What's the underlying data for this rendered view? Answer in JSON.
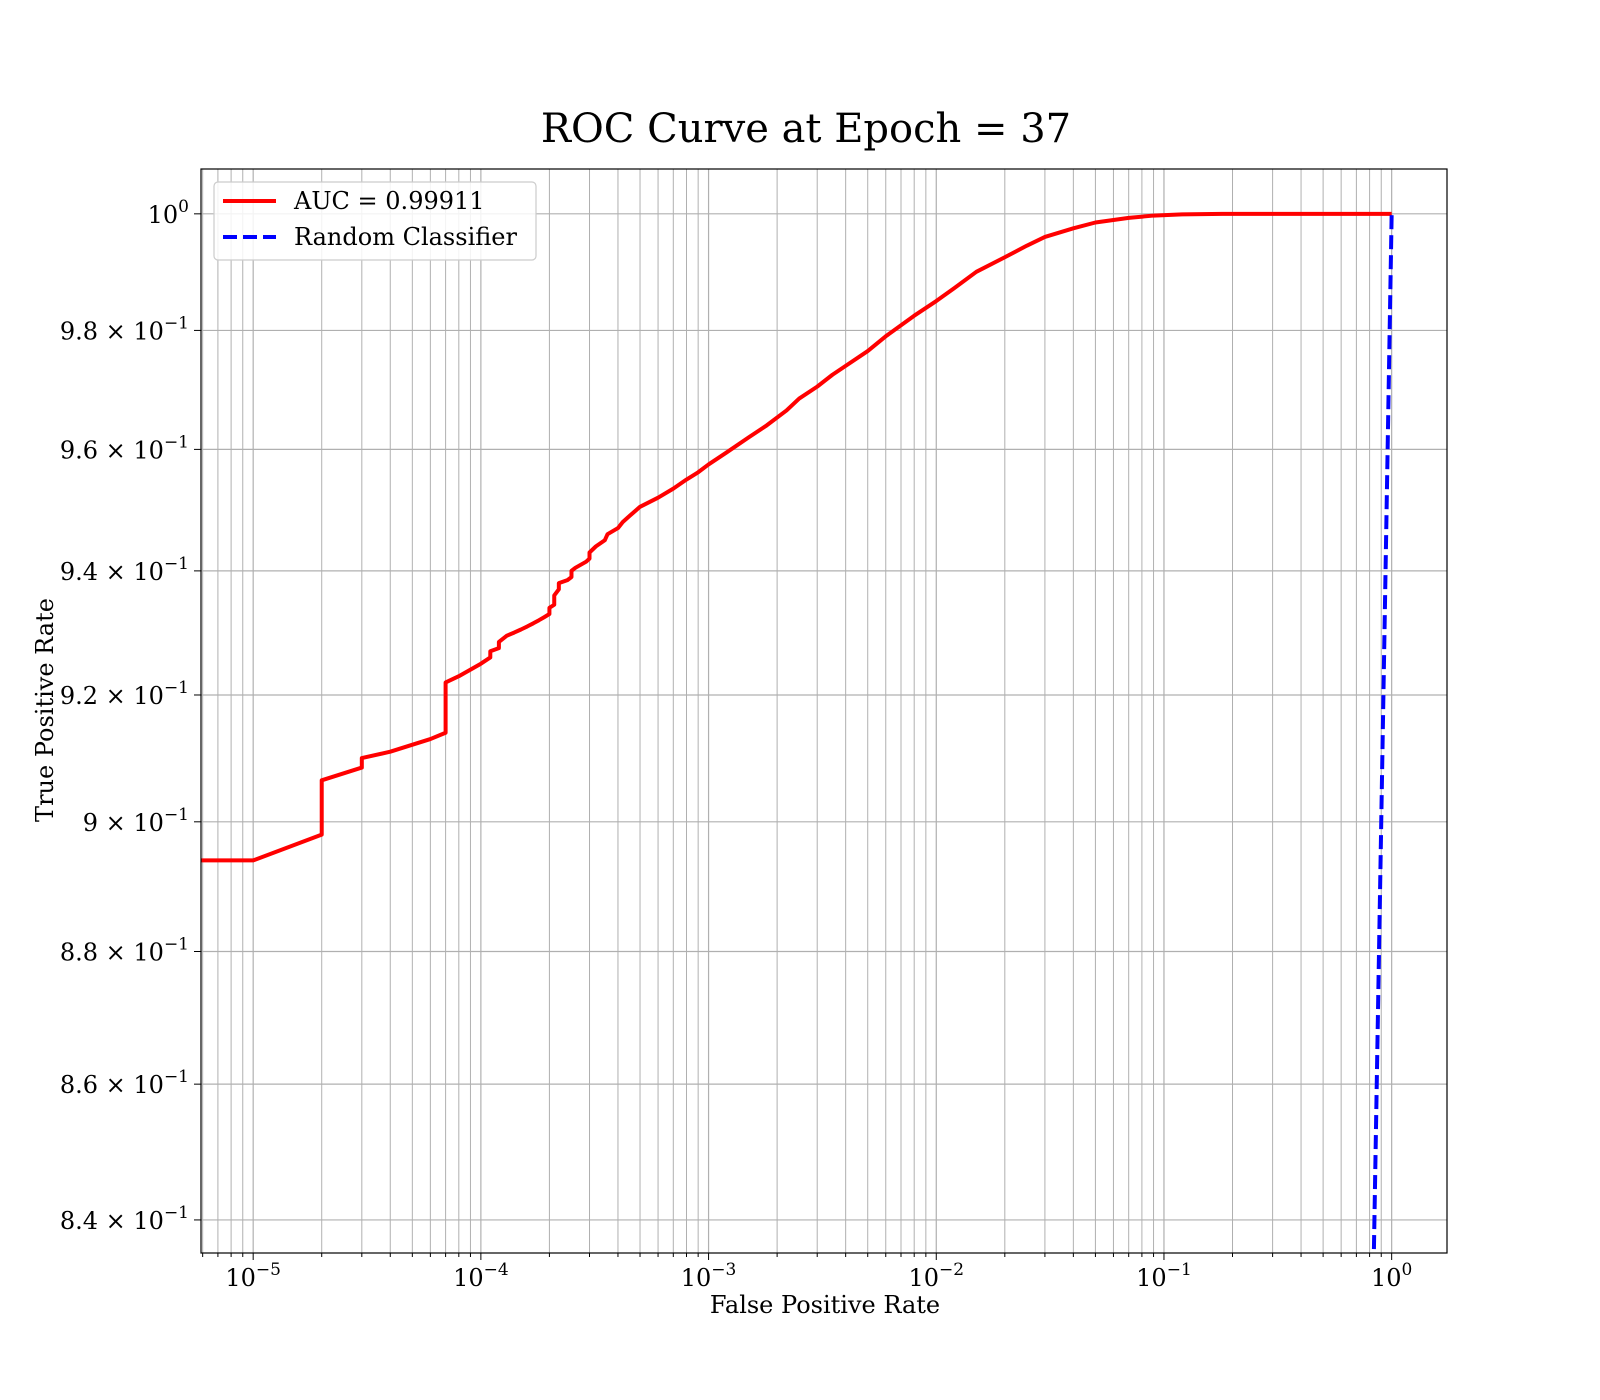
{
  "chart_data": {
    "type": "line",
    "title": "ROC Curve at Epoch = 37",
    "xlabel": "False Positive Rate",
    "ylabel": "True Positive Rate",
    "xscale": "log",
    "yscale": "log",
    "xlim": [
      5.9e-06,
      1.75
    ],
    "ylim": [
      0.8352,
      1.0078
    ],
    "grid": true,
    "grid_minor": true,
    "legend_position": "top-left",
    "x_ticks": [
      {
        "base": "10",
        "exp": "−5"
      },
      {
        "base": "10",
        "exp": "−4"
      },
      {
        "base": "10",
        "exp": "−3"
      },
      {
        "base": "10",
        "exp": "−2"
      },
      {
        "base": "10",
        "exp": "−1"
      },
      {
        "base": "10",
        "exp": "0"
      }
    ],
    "y_ticks": [
      {
        "mant": "",
        "base": "10",
        "exp": "0"
      },
      {
        "mant": "9.8",
        "base": "10",
        "exp": "−1"
      },
      {
        "mant": "9.6",
        "base": "10",
        "exp": "−1"
      },
      {
        "mant": "9.4",
        "base": "10",
        "exp": "−1"
      },
      {
        "mant": "9.2",
        "base": "10",
        "exp": "−1"
      },
      {
        "mant": "9",
        "base": "10",
        "exp": "−1"
      },
      {
        "mant": "8.8",
        "base": "10",
        "exp": "−1"
      },
      {
        "mant": "8.6",
        "base": "10",
        "exp": "−1"
      },
      {
        "mant": "8.4",
        "base": "10",
        "exp": "−1"
      }
    ],
    "series": [
      {
        "name": "AUC = 0.99911",
        "color": "#ff0000",
        "style": "solid",
        "x": [
          1e-06,
          1e-05,
          2e-05,
          2e-05,
          3e-05,
          3e-05,
          4e-05,
          6e-05,
          7e-05,
          7e-05,
          8e-05,
          0.0001,
          0.00011,
          0.00011,
          0.00012,
          0.00012,
          0.00013,
          0.00014,
          0.00015,
          0.00016,
          0.00017,
          0.00018,
          0.00019,
          0.0002,
          0.0002,
          0.00021,
          0.00021,
          0.00022,
          0.00022,
          0.00024,
          0.00025,
          0.00025,
          0.00026,
          0.00029,
          0.0003,
          0.0003,
          0.00032,
          0.00035,
          0.00036,
          0.0004,
          0.00042,
          0.00045,
          0.0005,
          0.0006,
          0.0007,
          0.0008,
          0.0009,
          0.001,
          0.0012,
          0.0015,
          0.0018,
          0.0022,
          0.0025,
          0.003,
          0.0035,
          0.004,
          0.005,
          0.006,
          0.008,
          0.01,
          0.012,
          0.015,
          0.02,
          0.025,
          0.03,
          0.04,
          0.05,
          0.07,
          0.09,
          0.12,
          0.18,
          0.3,
          0.5,
          1.0
        ],
        "y": [
          0.894,
          0.894,
          0.898,
          0.9065,
          0.9085,
          0.91,
          0.911,
          0.913,
          0.914,
          0.922,
          0.923,
          0.925,
          0.926,
          0.927,
          0.9275,
          0.9285,
          0.9295,
          0.93,
          0.9305,
          0.931,
          0.9315,
          0.932,
          0.9325,
          0.933,
          0.934,
          0.9345,
          0.936,
          0.937,
          0.938,
          0.9385,
          0.939,
          0.94,
          0.9405,
          0.9415,
          0.942,
          0.943,
          0.944,
          0.945,
          0.946,
          0.947,
          0.948,
          0.949,
          0.9505,
          0.952,
          0.9535,
          0.955,
          0.9562,
          0.9575,
          0.9595,
          0.962,
          0.964,
          0.9665,
          0.9685,
          0.9705,
          0.9725,
          0.974,
          0.9765,
          0.979,
          0.9825,
          0.985,
          0.9872,
          0.99,
          0.9925,
          0.9945,
          0.996,
          0.9975,
          0.9985,
          0.9993,
          0.9997,
          0.9999,
          1.0,
          1.0,
          1.0,
          1.0
        ]
      },
      {
        "name": "Random Classifier",
        "color": "#0000ff",
        "style": "dashed",
        "x": [
          0.83,
          0.85,
          0.9,
          0.95,
          1.0
        ],
        "y": [
          0.83,
          0.85,
          0.9,
          0.95,
          1.0
        ]
      }
    ]
  }
}
